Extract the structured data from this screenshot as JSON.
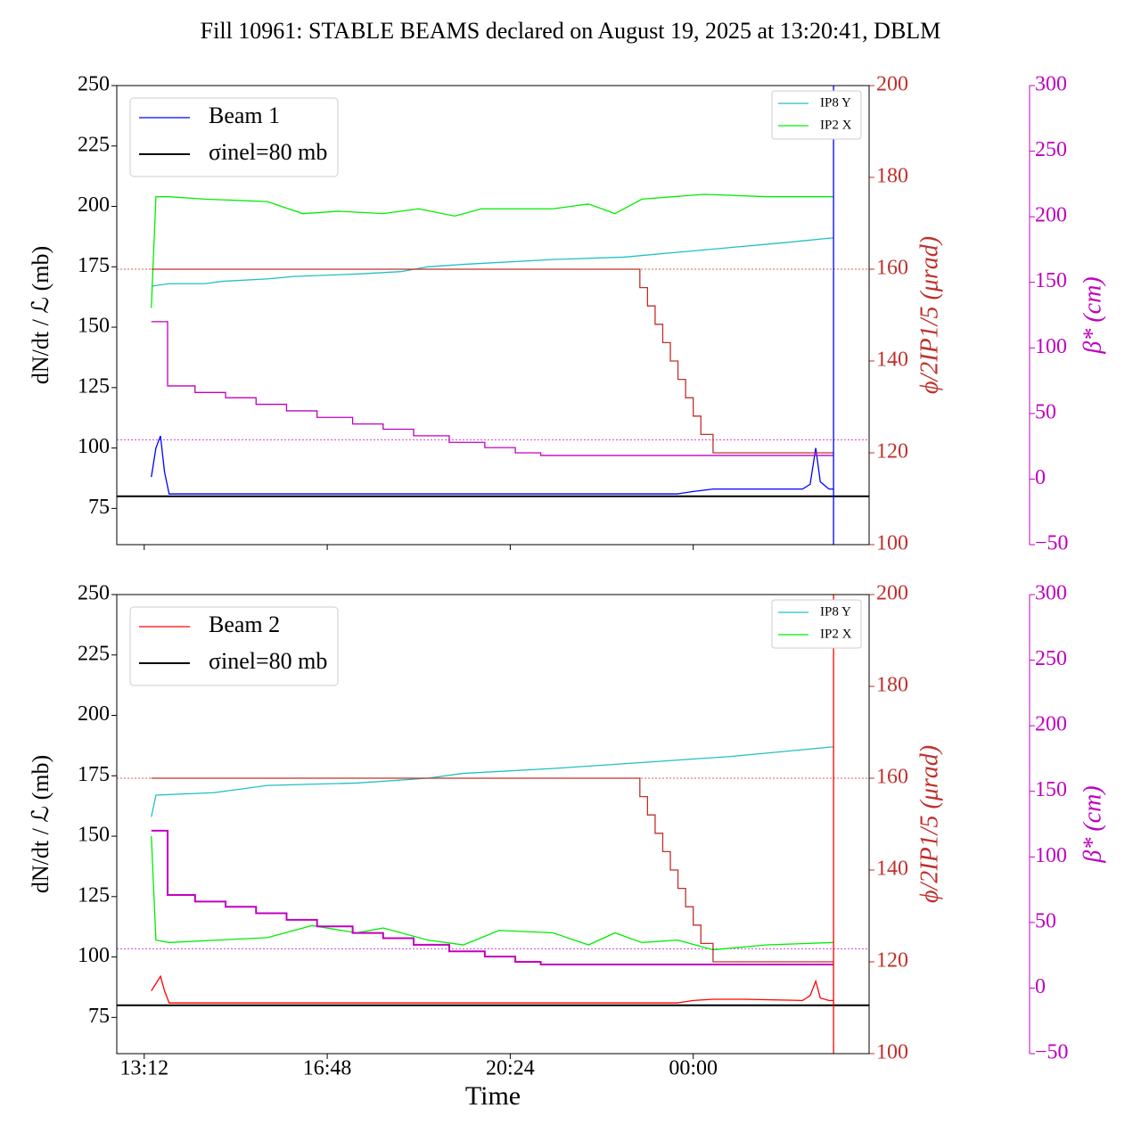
{
  "title": "Fill 10961: STABLE BEAMS declared on August 19, 2025 at 13:20:41, DBLM",
  "chart_data": [
    {
      "type": "line",
      "ylabel": "dN/dt / ℒ (mb)",
      "y2label": "ϕ/2IP1/5 (μrad)",
      "y3label": "β* (cm)",
      "xlim": [
        12.66,
        27.46
      ],
      "xticks": [
        {
          "value": 13.2,
          "label": "13:12"
        },
        {
          "value": 16.8,
          "label": "16:48"
        },
        {
          "value": 20.4,
          "label": "20:24"
        },
        {
          "value": 24.0,
          "label": "00:00"
        }
      ],
      "xtick_labels": false,
      "ylim": [
        60,
        250
      ],
      "yticks": [
        75,
        100,
        125,
        150,
        175,
        200,
        225,
        250
      ],
      "y2lim": [
        100,
        200
      ],
      "y2ticks": [
        100,
        120,
        140,
        160,
        180,
        200
      ],
      "y2color": "#c0302b",
      "y3lim": [
        -50,
        300
      ],
      "y3ticks": [
        {
          "value": -50,
          "label": "−50"
        },
        0,
        50,
        100,
        150,
        200,
        250,
        300
      ],
      "y3color": "#c000c0",
      "hline": {
        "name": "σinel=80 mb",
        "value": 80,
        "color": "#000000"
      },
      "vline": {
        "value": 26.76,
        "color": "#0000ff"
      },
      "refs": [
        {
          "axis": "y2",
          "value": 160,
          "color": "#c0302b"
        },
        {
          "axis": "y3",
          "value": 30,
          "color": "#c000c0"
        }
      ],
      "series": [
        {
          "name": "Beam 1",
          "legend": "upper left",
          "color": "#0000ff",
          "axis": "y",
          "x": [
            13.34,
            13.43,
            13.52,
            13.6,
            13.69,
            16,
            20,
            23.69,
            24.0,
            24.39,
            25,
            26.15,
            26.3,
            26.41,
            26.5,
            26.67,
            26.76
          ],
          "values": [
            88,
            100,
            105,
            90,
            81,
            81,
            81,
            81,
            82,
            83,
            83,
            83,
            85,
            100,
            86,
            83,
            83
          ]
        },
        {
          "name": "IP8 Y",
          "legend": "upper right",
          "color": "#20c0c0",
          "axis": "y",
          "x": [
            13.34,
            13.69,
            14.39,
            14.74,
            15.62,
            16.15,
            17.38,
            18.25,
            18.78,
            19.48,
            21.24,
            22.64,
            23.69,
            24.74,
            25.8,
            26.76
          ],
          "values": [
            167,
            168,
            168,
            169,
            170,
            171,
            172,
            173,
            175,
            176,
            178,
            179,
            181,
            183,
            185,
            187
          ]
        },
        {
          "name": "IP2 X",
          "legend": "upper right",
          "color": "#00ee00",
          "axis": "y",
          "x": [
            13.34,
            13.43,
            13.69,
            14.39,
            15.62,
            16.32,
            17.02,
            17.9,
            18.6,
            19.31,
            19.83,
            21.24,
            21.94,
            22.46,
            22.99,
            24.22,
            25.45,
            26.76
          ],
          "values": [
            158,
            204,
            204,
            203,
            202,
            197,
            198,
            197,
            199,
            196,
            199,
            199,
            201,
            197,
            203,
            205,
            204,
            204
          ]
        },
        {
          "color": "#c0302b",
          "axis": "y2",
          "step": true,
          "x": [
            13.34,
            22.95,
            23.1,
            23.25,
            23.4,
            23.55,
            23.7,
            23.85,
            24.0,
            24.15,
            24.39,
            26.76
          ],
          "values": [
            160,
            156,
            152,
            148,
            144,
            140,
            136,
            132,
            128,
            124,
            120,
            120
          ]
        },
        {
          "color": "#c000c0",
          "axis": "y3",
          "step": true,
          "x": [
            13.34,
            13.66,
            14.2,
            14.8,
            15.4,
            16.0,
            16.6,
            17.3,
            17.9,
            18.5,
            19.2,
            19.9,
            20.5,
            21.0,
            26.76
          ],
          "values": [
            120,
            71,
            66,
            62,
            57,
            52,
            47,
            42,
            38,
            33,
            28,
            24,
            20,
            18,
            18
          ]
        }
      ]
    },
    {
      "type": "line",
      "ylabel": "dN/dt / ℒ (mb)",
      "y2label": "ϕ/2IP1/5 (μrad)",
      "y3label": "β* (cm)",
      "xlabel": "Time",
      "xlim": [
        12.66,
        27.46
      ],
      "xticks": [
        {
          "value": 13.2,
          "label": "13:12"
        },
        {
          "value": 16.8,
          "label": "16:48"
        },
        {
          "value": 20.4,
          "label": "20:24"
        },
        {
          "value": 24.0,
          "label": "00:00"
        }
      ],
      "xtick_labels": true,
      "ylim": [
        60,
        250
      ],
      "yticks": [
        75,
        100,
        125,
        150,
        175,
        200,
        225,
        250
      ],
      "y2lim": [
        100,
        200
      ],
      "y2ticks": [
        100,
        120,
        140,
        160,
        180,
        200
      ],
      "y2color": "#c0302b",
      "y3lim": [
        -50,
        300
      ],
      "y3ticks": [
        {
          "value": -50,
          "label": "−50"
        },
        0,
        50,
        100,
        150,
        200,
        250,
        300
      ],
      "y3color": "#c000c0",
      "hline": {
        "name": "σinel=80 mb",
        "value": 80,
        "color": "#000000"
      },
      "vline": {
        "value": 26.76,
        "color": "#ff0000"
      },
      "refs": [
        {
          "axis": "y2",
          "value": 160,
          "color": "#c0302b"
        },
        {
          "axis": "y3",
          "value": 30,
          "color": "#c000c0"
        }
      ],
      "series": [
        {
          "name": "Beam 2",
          "legend": "upper left",
          "color": "#ff0000",
          "axis": "y",
          "x": [
            13.34,
            13.43,
            13.52,
            13.6,
            13.69,
            16,
            20,
            23.69,
            24.0,
            24.39,
            25,
            26.15,
            26.3,
            26.41,
            26.5,
            26.67,
            26.76
          ],
          "values": [
            86,
            89,
            92,
            86,
            81,
            81,
            81,
            81,
            82,
            82.5,
            82.5,
            82,
            84,
            90,
            83,
            82,
            82
          ]
        },
        {
          "name": "IP8 Y",
          "legend": "upper right",
          "color": "#20c0c0",
          "axis": "y",
          "x": [
            13.34,
            13.43,
            14.57,
            15.62,
            17.38,
            18.78,
            19.48,
            21.24,
            22.64,
            24.74,
            26.76
          ],
          "values": [
            158,
            167,
            168,
            171,
            172,
            174,
            176,
            178,
            180,
            183,
            187
          ]
        },
        {
          "name": "IP2 X",
          "legend": "upper right",
          "color": "#00ee00",
          "axis": "y",
          "x": [
            13.34,
            13.43,
            13.69,
            15.62,
            16.15,
            16.5,
            17.38,
            17.9,
            18.78,
            19.48,
            20.18,
            21.24,
            21.94,
            22.46,
            22.99,
            23.69,
            24.39,
            25.45,
            26.76
          ],
          "values": [
            150,
            107,
            106,
            108,
            111,
            113,
            110,
            112,
            107,
            105,
            111,
            110,
            105,
            110,
            106,
            107,
            103,
            105,
            106
          ]
        },
        {
          "color": "#c0302b",
          "axis": "y2",
          "step": true,
          "x": [
            13.34,
            22.95,
            23.1,
            23.25,
            23.4,
            23.55,
            23.7,
            23.85,
            24.0,
            24.15,
            24.39,
            26.76
          ],
          "values": [
            160,
            156,
            152,
            148,
            144,
            140,
            136,
            132,
            128,
            124,
            120,
            120
          ]
        },
        {
          "color": "#c000c0",
          "axis": "y3",
          "step": true,
          "x": [
            13.34,
            13.66,
            14.2,
            14.8,
            15.4,
            16.0,
            16.6,
            17.3,
            17.9,
            18.5,
            19.2,
            19.9,
            20.5,
            21.0,
            26.76
          ],
          "values": [
            120,
            71,
            66,
            62,
            57,
            52,
            47,
            42,
            38,
            33,
            28,
            24,
            20,
            18,
            18
          ]
        }
      ]
    }
  ]
}
